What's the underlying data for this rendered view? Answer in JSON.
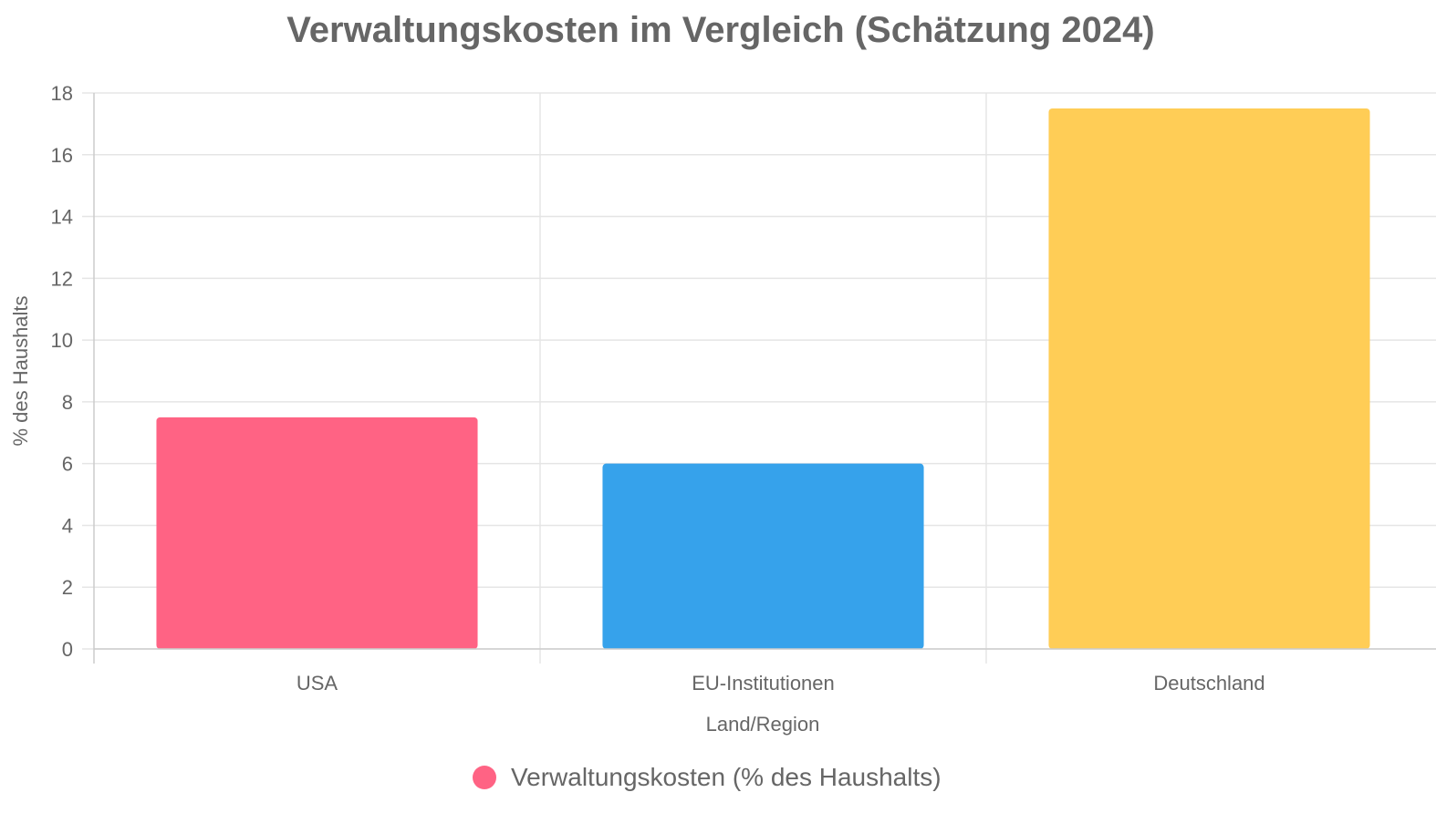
{
  "chart_data": {
    "type": "bar",
    "title": "Verwaltungskosten im Vergleich (Schätzung 2024)",
    "xlabel": "Land/Region",
    "ylabel": "% des Haushalts",
    "categories": [
      "USA",
      "EU-Institutionen",
      "Deutschland"
    ],
    "series": [
      {
        "name": "Verwaltungskosten (% des Haushalts)",
        "values": [
          7.5,
          6.0,
          17.5
        ],
        "colors": [
          "#ff6384",
          "#36a2eb",
          "#ffcd56"
        ]
      }
    ],
    "ylim": [
      0,
      18
    ],
    "yticks": [
      "0",
      "2",
      "4",
      "6",
      "8",
      "10",
      "12",
      "14",
      "16",
      "18"
    ],
    "grid": true,
    "legend": "bottom",
    "legend_color": "#ff6384"
  }
}
